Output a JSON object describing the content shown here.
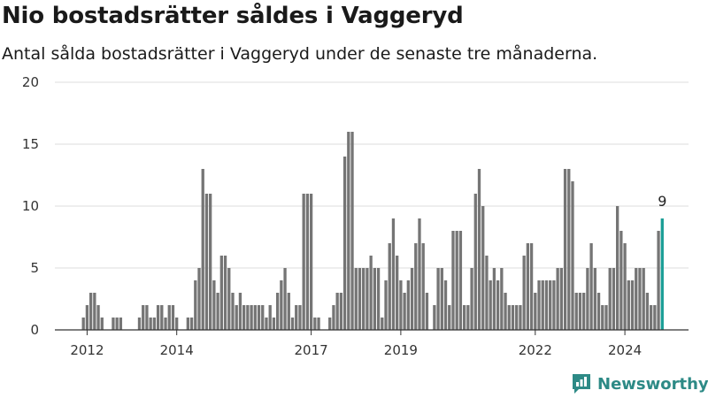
{
  "header": {
    "title": "Nio bostadsrätter såldes i Vaggeryd",
    "subtitle": "Antal sålda bostadsrätter i Vaggeryd under de senaste tre månaderna."
  },
  "brand": {
    "name": "Newsworthy",
    "color": "#2d8a86"
  },
  "colors": {
    "bar": "#757575",
    "highlight": "#1a9e96",
    "grid": "#dddddd",
    "axis": "#333333"
  },
  "chart_data": {
    "type": "bar",
    "y_ticks": [
      0,
      5,
      10,
      15,
      20
    ],
    "ylim": [
      0,
      20
    ],
    "x_ticks": [
      {
        "label": "2012",
        "index": 8
      },
      {
        "label": "2014",
        "index": 32
      },
      {
        "label": "2017",
        "index": 68
      },
      {
        "label": "2019",
        "index": 92
      },
      {
        "label": "2022",
        "index": 128
      },
      {
        "label": "2024",
        "index": 152
      }
    ],
    "highlight_label": "9",
    "values": [
      0,
      0,
      0,
      0,
      0,
      0,
      0,
      1,
      2,
      3,
      3,
      2,
      1,
      0,
      0,
      1,
      1,
      1,
      0,
      0,
      0,
      0,
      1,
      2,
      2,
      1,
      1,
      2,
      2,
      1,
      2,
      2,
      1,
      0,
      0,
      1,
      1,
      4,
      5,
      13,
      11,
      11,
      4,
      3,
      6,
      6,
      5,
      3,
      2,
      3,
      2,
      2,
      2,
      2,
      2,
      2,
      1,
      2,
      1,
      3,
      4,
      5,
      3,
      1,
      2,
      2,
      11,
      11,
      11,
      1,
      1,
      0,
      0,
      1,
      2,
      3,
      3,
      14,
      16,
      16,
      5,
      5,
      5,
      5,
      6,
      5,
      5,
      1,
      4,
      7,
      9,
      6,
      4,
      3,
      4,
      5,
      7,
      9,
      7,
      3,
      0,
      2,
      5,
      5,
      4,
      2,
      8,
      8,
      8,
      2,
      2,
      5,
      11,
      13,
      10,
      6,
      4,
      5,
      4,
      5,
      3,
      2,
      2,
      2,
      2,
      6,
      7,
      7,
      3,
      4,
      4,
      4,
      4,
      4,
      5,
      5,
      13,
      13,
      12,
      3,
      3,
      3,
      5,
      7,
      5,
      3,
      2,
      2,
      5,
      5,
      10,
      8,
      7,
      4,
      4,
      5,
      5,
      5,
      3,
      2,
      2,
      8,
      9
    ]
  }
}
